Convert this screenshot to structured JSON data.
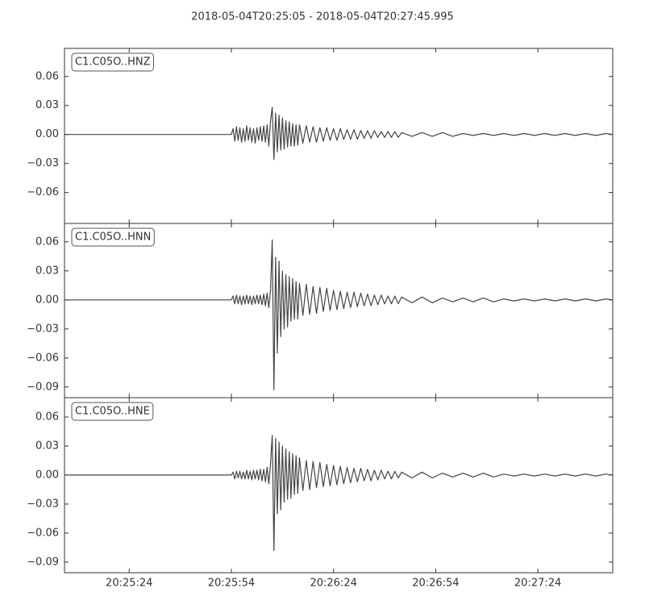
{
  "chart_data": [
    {
      "type": "line",
      "title": "2018-05-04T20:25:05  -  2018-05-04T20:27:45.995",
      "x": [
        "20:25:05",
        "20:25:54",
        "20:25:54.5",
        "20:25:55",
        "20:25:55.5",
        "20:25:56",
        "20:25:56.5",
        "20:25:57",
        "20:25:57.5",
        "20:25:58",
        "20:25:58.5",
        "20:25:59",
        "20:25:59.5",
        "20:26:00",
        "20:26:00.5",
        "20:26:01",
        "20:26:01.5",
        "20:26:02",
        "20:26:02.5",
        "20:26:03",
        "20:26:03.5",
        "20:26:04",
        "20:26:04.5",
        "20:26:05",
        "20:26:05.5",
        "20:26:06",
        "20:26:06.5",
        "20:26:07",
        "20:26:07.5",
        "20:26:08",
        "20:26:08.5",
        "20:26:09",
        "20:26:09.5",
        "20:26:10",
        "20:26:10.5",
        "20:26:11",
        "20:26:11.5",
        "20:26:12",
        "20:26:12.5",
        "20:26:13",
        "20:26:13.5",
        "20:26:14",
        "20:26:15",
        "20:26:16",
        "20:26:17",
        "20:26:18",
        "20:26:19",
        "20:26:20",
        "20:26:21",
        "20:26:22",
        "20:26:23",
        "20:26:24",
        "20:26:25",
        "20:26:26",
        "20:26:27",
        "20:26:28",
        "20:26:29",
        "20:26:30",
        "20:26:31",
        "20:26:32",
        "20:26:33",
        "20:26:34",
        "20:26:35",
        "20:26:36",
        "20:26:37",
        "20:26:38",
        "20:26:39",
        "20:26:40",
        "20:26:41",
        "20:26:42",
        "20:26:43",
        "20:26:44",
        "20:26:47",
        "20:26:50",
        "20:26:53",
        "20:26:56",
        "20:26:59",
        "20:27:02",
        "20:27:05",
        "20:27:08",
        "20:27:11",
        "20:27:14",
        "20:27:17",
        "20:27:20",
        "20:27:23",
        "20:27:26",
        "20:27:29",
        "20:27:32",
        "20:27:35",
        "20:27:38",
        "20:27:41",
        "20:27:44",
        "20:27:45.995"
      ],
      "series": [
        {
          "name": "C1.C05O..HNZ",
          "color": "#444444",
          "values": [
            0,
            0,
            0.006,
            -0.007,
            0.008,
            -0.006,
            0.007,
            -0.008,
            0.006,
            -0.007,
            0.009,
            -0.006,
            0.007,
            -0.008,
            0.006,
            -0.009,
            0.007,
            -0.006,
            0.008,
            -0.007,
            0.009,
            -0.008,
            0.01,
            -0.012,
            0.014,
            0.028,
            -0.026,
            0.022,
            -0.018,
            0.02,
            -0.016,
            0.017,
            -0.015,
            0.014,
            -0.013,
            0.013,
            -0.012,
            0.011,
            -0.012,
            0.01,
            -0.011,
            0.01,
            -0.009,
            0.009,
            -0.008,
            0.008,
            -0.008,
            0.007,
            -0.007,
            0.007,
            -0.006,
            0.006,
            -0.006,
            0.006,
            -0.005,
            0.005,
            -0.005,
            0.005,
            -0.005,
            0.004,
            -0.004,
            0.004,
            -0.004,
            0.004,
            -0.003,
            0.003,
            -0.003,
            0.003,
            -0.003,
            0.003,
            -0.003,
            0.002,
            -0.002,
            0.002,
            -0.002,
            0.002,
            -0.002,
            0.001,
            -0.001,
            0.001,
            -0.001,
            0.001,
            -0.001,
            0.001,
            -0.001,
            0.001,
            -0.001,
            0.001,
            -0.001,
            0.001,
            -0.001,
            0.001,
            0
          ]
        }
      ],
      "xlim": [
        "20:25:05",
        "20:27:45.995"
      ],
      "ylim": [
        -0.092,
        0.089
      ],
      "yticks": [
        0.06,
        0.03,
        {
          "value": 0,
          "label": "0.00"
        },
        {
          "value": -0.03,
          "label": "−0.03"
        },
        {
          "value": -0.06,
          "label": "−0.06"
        }
      ]
    },
    {
      "type": "line",
      "x": [
        "20:25:05",
        "20:25:54",
        "20:25:54.5",
        "20:25:55",
        "20:25:55.5",
        "20:25:56",
        "20:25:56.5",
        "20:25:57",
        "20:25:57.5",
        "20:25:58",
        "20:25:58.5",
        "20:25:59",
        "20:25:59.5",
        "20:26:00",
        "20:26:00.5",
        "20:26:01",
        "20:26:01.5",
        "20:26:02",
        "20:26:02.5",
        "20:26:03",
        "20:26:03.5",
        "20:26:04",
        "20:26:04.5",
        "20:26:05",
        "20:26:05.5",
        "20:26:06",
        "20:26:06.5",
        "20:26:07",
        "20:26:07.5",
        "20:26:08",
        "20:26:08.5",
        "20:26:09",
        "20:26:09.5",
        "20:26:10",
        "20:26:10.5",
        "20:26:11",
        "20:26:11.5",
        "20:26:12",
        "20:26:12.5",
        "20:26:13",
        "20:26:13.5",
        "20:26:14",
        "20:26:15",
        "20:26:16",
        "20:26:17",
        "20:26:18",
        "20:26:19",
        "20:26:20",
        "20:26:21",
        "20:26:22",
        "20:26:23",
        "20:26:24",
        "20:26:25",
        "20:26:26",
        "20:26:27",
        "20:26:28",
        "20:26:29",
        "20:26:30",
        "20:26:31",
        "20:26:32",
        "20:26:33",
        "20:26:34",
        "20:26:35",
        "20:26:36",
        "20:26:37",
        "20:26:38",
        "20:26:39",
        "20:26:40",
        "20:26:41",
        "20:26:42",
        "20:26:43",
        "20:26:44",
        "20:26:47",
        "20:26:50",
        "20:26:53",
        "20:26:56",
        "20:26:59",
        "20:27:02",
        "20:27:05",
        "20:27:08",
        "20:27:11",
        "20:27:14",
        "20:27:17",
        "20:27:20",
        "20:27:23",
        "20:27:26",
        "20:27:29",
        "20:27:32",
        "20:27:35",
        "20:27:38",
        "20:27:41",
        "20:27:44",
        "20:27:45.995"
      ],
      "series": [
        {
          "name": "C1.C05O..HNN",
          "color": "#444444",
          "values": [
            0,
            0,
            0.004,
            -0.004,
            0.005,
            -0.004,
            0.004,
            -0.005,
            0.004,
            -0.004,
            0.005,
            -0.004,
            0.004,
            -0.005,
            0.004,
            -0.004,
            0.005,
            -0.004,
            0.005,
            -0.005,
            0.006,
            -0.006,
            0.007,
            -0.008,
            0.01,
            0.062,
            -0.093,
            0.044,
            -0.055,
            0.04,
            -0.038,
            0.03,
            -0.03,
            0.026,
            -0.028,
            0.024,
            -0.022,
            0.022,
            -0.02,
            0.019,
            -0.02,
            0.017,
            -0.016,
            0.016,
            -0.015,
            0.014,
            -0.014,
            0.013,
            -0.012,
            0.012,
            -0.011,
            0.01,
            -0.01,
            0.009,
            -0.009,
            0.008,
            -0.008,
            0.008,
            -0.007,
            0.007,
            -0.006,
            0.006,
            -0.006,
            0.005,
            -0.005,
            0.005,
            -0.004,
            0.004,
            -0.004,
            0.004,
            -0.004,
            0.003,
            -0.003,
            0.003,
            -0.003,
            0.002,
            -0.002,
            0.002,
            -0.002,
            0.002,
            -0.002,
            0.001,
            -0.001,
            0.001,
            -0.001,
            0.001,
            -0.001,
            0.001,
            -0.001,
            0.001,
            -0.001,
            0.001,
            0
          ]
        }
      ],
      "xlim": [
        "20:25:05",
        "20:27:45.995"
      ],
      "ylim": [
        -0.101,
        0.079
      ],
      "yticks": [
        0.06,
        0.03,
        {
          "value": 0,
          "label": "0.00"
        },
        {
          "value": -0.03,
          "label": "−0.03"
        },
        {
          "value": -0.06,
          "label": "−0.06"
        },
        {
          "value": -0.09,
          "label": "−0.09"
        }
      ]
    },
    {
      "type": "line",
      "x": [
        "20:25:05",
        "20:25:54",
        "20:25:54.5",
        "20:25:55",
        "20:25:55.5",
        "20:25:56",
        "20:25:56.5",
        "20:25:57",
        "20:25:57.5",
        "20:25:58",
        "20:25:58.5",
        "20:25:59",
        "20:25:59.5",
        "20:26:00",
        "20:26:00.5",
        "20:26:01",
        "20:26:01.5",
        "20:26:02",
        "20:26:02.5",
        "20:26:03",
        "20:26:03.5",
        "20:26:04",
        "20:26:04.5",
        "20:26:05",
        "20:26:05.5",
        "20:26:06",
        "20:26:06.5",
        "20:26:07",
        "20:26:07.5",
        "20:26:08",
        "20:26:08.5",
        "20:26:09",
        "20:26:09.5",
        "20:26:10",
        "20:26:10.5",
        "20:26:11",
        "20:26:11.5",
        "20:26:12",
        "20:26:12.5",
        "20:26:13",
        "20:26:13.5",
        "20:26:14",
        "20:26:15",
        "20:26:16",
        "20:26:17",
        "20:26:18",
        "20:26:19",
        "20:26:20",
        "20:26:21",
        "20:26:22",
        "20:26:23",
        "20:26:24",
        "20:26:25",
        "20:26:26",
        "20:26:27",
        "20:26:28",
        "20:26:29",
        "20:26:30",
        "20:26:31",
        "20:26:32",
        "20:26:33",
        "20:26:34",
        "20:26:35",
        "20:26:36",
        "20:26:37",
        "20:26:38",
        "20:26:39",
        "20:26:40",
        "20:26:41",
        "20:26:42",
        "20:26:43",
        "20:26:44",
        "20:26:47",
        "20:26:50",
        "20:26:53",
        "20:26:56",
        "20:26:59",
        "20:27:02",
        "20:27:05",
        "20:27:08",
        "20:27:11",
        "20:27:14",
        "20:27:17",
        "20:27:20",
        "20:27:23",
        "20:27:26",
        "20:27:29",
        "20:27:32",
        "20:27:35",
        "20:27:38",
        "20:27:41",
        "20:27:44",
        "20:27:45.995"
      ],
      "series": [
        {
          "name": "C1.C05O..HNE",
          "color": "#444444",
          "values": [
            0,
            0,
            0.003,
            -0.004,
            0.004,
            -0.003,
            0.004,
            -0.004,
            0.003,
            -0.004,
            0.005,
            -0.004,
            0.004,
            -0.005,
            0.005,
            -0.004,
            0.005,
            -0.005,
            0.006,
            -0.006,
            0.006,
            -0.007,
            0.008,
            -0.009,
            0.012,
            0.041,
            -0.078,
            0.038,
            -0.04,
            0.034,
            -0.036,
            0.03,
            -0.028,
            0.027,
            -0.025,
            0.024,
            -0.024,
            0.022,
            -0.02,
            0.02,
            -0.019,
            0.018,
            -0.016,
            0.015,
            -0.015,
            0.014,
            -0.013,
            0.013,
            -0.012,
            0.011,
            -0.011,
            0.01,
            -0.01,
            0.009,
            -0.009,
            0.008,
            -0.008,
            0.007,
            -0.007,
            0.007,
            -0.006,
            0.006,
            -0.006,
            0.005,
            -0.005,
            0.005,
            -0.004,
            0.004,
            -0.004,
            0.004,
            -0.003,
            0.003,
            -0.003,
            0.003,
            -0.003,
            0.002,
            -0.002,
            0.002,
            -0.002,
            0.002,
            -0.002,
            0.001,
            -0.001,
            0.001,
            -0.001,
            0.001,
            -0.001,
            0.001,
            -0.001,
            0.001,
            -0.001,
            0.001,
            0
          ]
        }
      ],
      "xlim": [
        "20:25:05",
        "20:27:45.995"
      ],
      "ylim": [
        -0.101,
        0.08
      ],
      "yticks": [
        0.06,
        0.03,
        {
          "value": 0,
          "label": "0.00"
        },
        {
          "value": -0.03,
          "label": "−0.03"
        },
        {
          "value": -0.06,
          "label": "−0.06"
        },
        {
          "value": -0.09,
          "label": "−0.09"
        }
      ],
      "xticks": [
        "20:25:24",
        "20:25:54",
        "20:26:24",
        "20:26:54",
        "20:27:24"
      ]
    }
  ]
}
